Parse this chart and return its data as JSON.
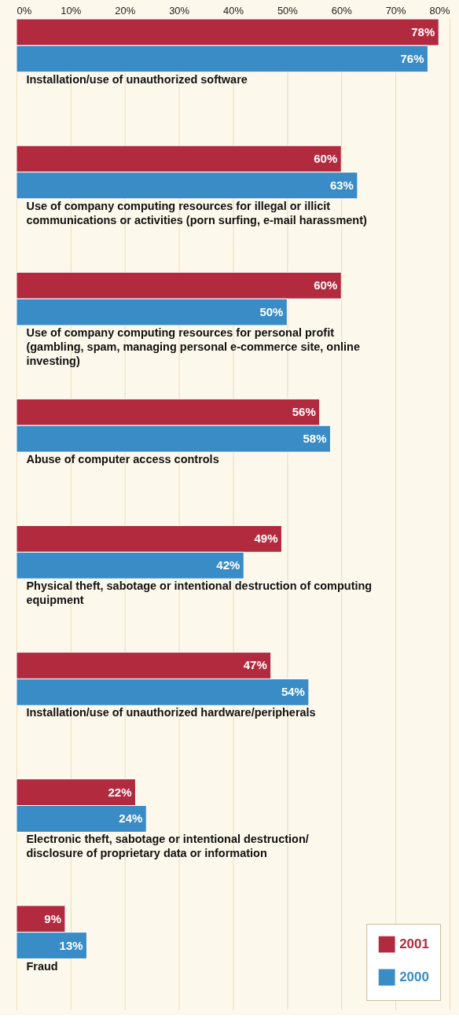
{
  "chart_data": {
    "type": "bar",
    "orientation": "horizontal",
    "categories": [
      "Installation/use of unauthorized software",
      "Use of company computing resources for illegal or illicit communications or activities (porn surfing, e-mail harassment)",
      "Use of company computing resources for personal profit (gambling, spam, managing personal e-commerce site, online investing)",
      "Abuse of computer access controls",
      "Physical theft, sabotage or intentional destruction of computing equipment",
      "Installation/use of unauthorized hardware/peripherals",
      "Electronic theft, sabotage or intentional destruction/ disclosure of proprietary data or information",
      "Fraud"
    ],
    "series": [
      {
        "name": "2001",
        "color": "#b22a3e",
        "values": [
          78,
          60,
          60,
          56,
          49,
          47,
          22,
          9
        ],
        "value_labels": [
          "78%",
          "60%",
          "60%",
          "56%",
          "49%",
          "47%",
          "22%",
          "9%"
        ]
      },
      {
        "name": "2000",
        "color": "#3a8cc6",
        "values": [
          76,
          63,
          50,
          58,
          42,
          54,
          24,
          13
        ],
        "value_labels": [
          "76%",
          "63%",
          "50%",
          "58%",
          "42%",
          "54%",
          "24%",
          "13%"
        ]
      }
    ],
    "xlim": [
      0,
      80
    ],
    "xticks": [
      {
        "value": 0,
        "label": "0%"
      },
      {
        "value": 10,
        "label": "10%"
      },
      {
        "value": 20,
        "label": "20%"
      },
      {
        "value": 30,
        "label": "30%"
      },
      {
        "value": 40,
        "label": "40%"
      },
      {
        "value": 50,
        "label": "50%"
      },
      {
        "value": 60,
        "label": "60%"
      },
      {
        "value": 70,
        "label": "70%"
      },
      {
        "value": 80,
        "label": "80%"
      }
    ],
    "grid": "x",
    "legend": "bottom right"
  }
}
